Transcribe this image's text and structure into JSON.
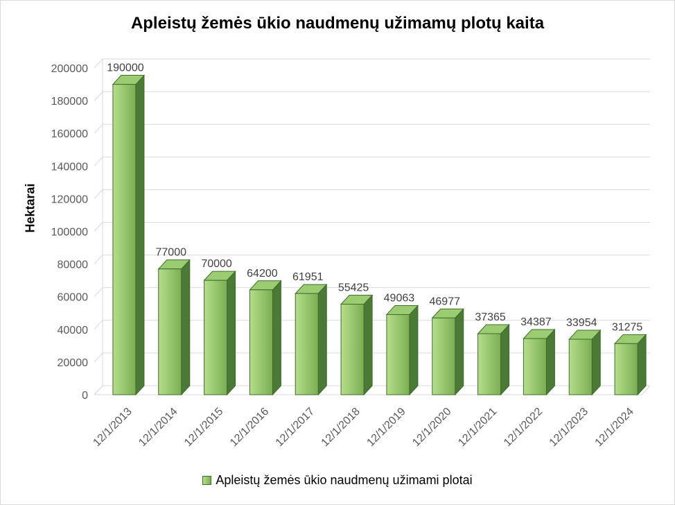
{
  "chart_data": {
    "type": "bar",
    "title": "Apleistų žemės ūkio naudmenų užimamų plotų kaita",
    "ylabel": "Hektarai",
    "xlabel": "",
    "categories": [
      "12/1/2013",
      "12/1/2014",
      "12/1/2015",
      "12/1/2016",
      "12/1/2017",
      "12/1/2018",
      "12/1/2019",
      "12/1/2020",
      "12/1/2021",
      "12/1/2022",
      "12/1/2023",
      "12/1/2024"
    ],
    "series": [
      {
        "name": "Apleistų žemės ūkio naudmenų užimami plotai",
        "values": [
          190000,
          77000,
          70000,
          64200,
          61951,
          55425,
          49063,
          46977,
          37365,
          34387,
          33954,
          31275
        ]
      }
    ],
    "ylim": [
      0,
      200000
    ],
    "ytick_step": 20000,
    "grid": true,
    "legend_position": "bottom",
    "colors": {
      "bar_front_light": "#b6dd8c",
      "bar_front_dark": "#7aae52",
      "bar_side": "#4a7a36",
      "bar_top": "#9ccc72",
      "bar_stroke": "#3f6b2b",
      "grid": "#d9d9d9"
    }
  }
}
